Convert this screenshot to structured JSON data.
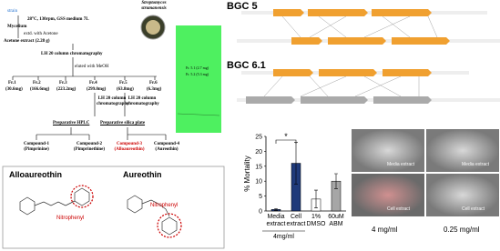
{
  "flowchart": {
    "strain": "strain",
    "culture": "28°C, 130rpm, GSS medium 7L",
    "mycelium": "Mycelium",
    "extraction": "extd. with Acetone",
    "extract": "Acetone extract (2.28 g)",
    "column1": "LH 20 column chromatography",
    "elution": "eluted with MeOH",
    "fractions": [
      {
        "name": "Fr.1",
        "amount": "(30.6mg)"
      },
      {
        "name": "Fr.2",
        "amount": "(166.6mg)"
      },
      {
        "name": "Fr.3",
        "amount": "(223.2mg)"
      },
      {
        "name": "Fr.4",
        "amount": "(299.0mg)"
      },
      {
        "name": "Fr.5",
        "amount": "(63.8mg)"
      },
      {
        "name": "Fr.6",
        "amount": "(6.3mg)"
      }
    ],
    "column_fr4": "LH 20 column chromatography",
    "column_fr5": "LH 20 column chromatography",
    "hplc": "Preparative HPLC",
    "silica": "Preparative silica plate",
    "compounds": [
      {
        "name": "Compound-1",
        "label": "(Pimprinine)"
      },
      {
        "name": "Compound-2",
        "label": "(Pimprinethine)"
      },
      {
        "name": "Compound-3",
        "label": "(Alloaureothin)"
      },
      {
        "name": "Compound-4",
        "label": "(Aureothin)"
      }
    ]
  },
  "organism": "Streptomyces strumanensis",
  "tlc": {
    "spots": [
      "Fr. 5.1 (2.7 mg)",
      "Fr. 5.2 (5.3 mg)"
    ]
  },
  "structures": {
    "left": {
      "title": "Alloaureothin",
      "group": "Nitrophenyl"
    },
    "right": {
      "title": "Aureothin",
      "group": "Nitrophenyl"
    }
  },
  "bgc": {
    "labels": [
      "BGC 5",
      "BGC 6.1"
    ]
  },
  "chart_data": {
    "type": "bar",
    "y_label": "% Mortality",
    "categories": [
      "Media extract",
      "Cell extract",
      "1% DMSO",
      "60uM ABM"
    ],
    "values": [
      0.5,
      16,
      4,
      10
    ],
    "errors": [
      0.3,
      7,
      3,
      2.5
    ],
    "colors": [
      "#1f3a7a",
      "#1f3a7a",
      "#ffffff",
      "#a6a6a6"
    ],
    "ylim": [
      0,
      25
    ],
    "yticks": [
      0,
      5,
      10,
      15,
      20,
      25
    ],
    "annotation": "*",
    "group_label": "4mg/ml"
  },
  "micrographs": {
    "panels": [
      "Media extract",
      "Media extract",
      "Cell extract",
      "Cell extract"
    ],
    "concentrations": [
      "4 mg/ml",
      "0.25 mg/ml"
    ]
  }
}
